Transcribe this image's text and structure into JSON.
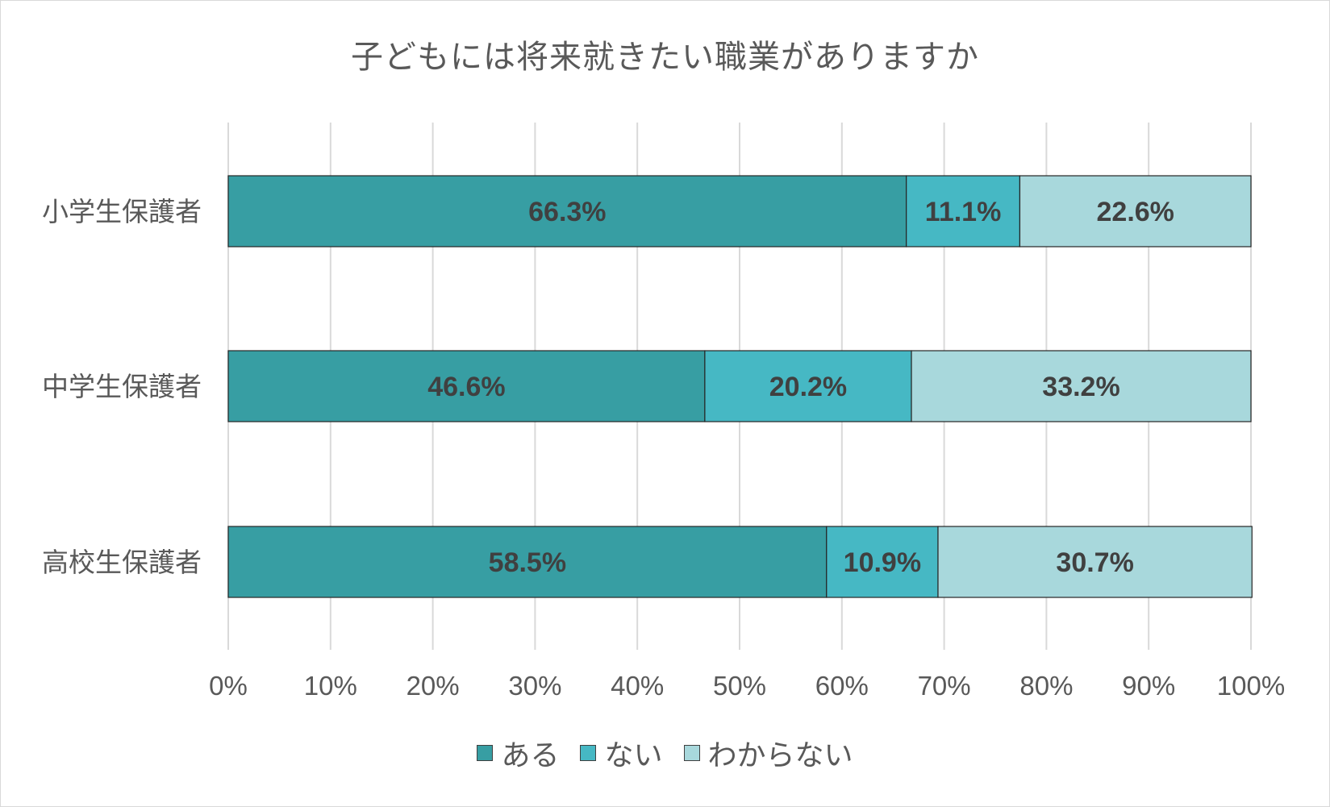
{
  "chart_data": {
    "type": "bar",
    "orientation": "horizontal",
    "stacked": "percent",
    "title": "子どもには将来就きたい職業がありますか",
    "categories": [
      "小学生保護者",
      "中学生保護者",
      "高校生保護者"
    ],
    "series": [
      {
        "name": "ある",
        "values": [
          66.3,
          46.6,
          58.5
        ],
        "color": "#379ea3",
        "labels": [
          "66.3%",
          "46.6%",
          "58.5%"
        ]
      },
      {
        "name": "ない",
        "values": [
          11.1,
          20.2,
          10.9
        ],
        "color": "#46b8c4",
        "labels": [
          "11.1%",
          "20.2%",
          "10.9%"
        ]
      },
      {
        "name": "わからない",
        "values": [
          22.6,
          33.2,
          30.7
        ],
        "color": "#a8d8dc",
        "labels": [
          "22.6%",
          "33.2%",
          "30.7%"
        ]
      }
    ],
    "xlim": [
      0,
      100
    ],
    "xticks": [
      "0%",
      "10%",
      "20%",
      "30%",
      "40%",
      "50%",
      "60%",
      "70%",
      "80%",
      "90%",
      "100%"
    ],
    "grid": true,
    "legend_position": "bottom"
  }
}
